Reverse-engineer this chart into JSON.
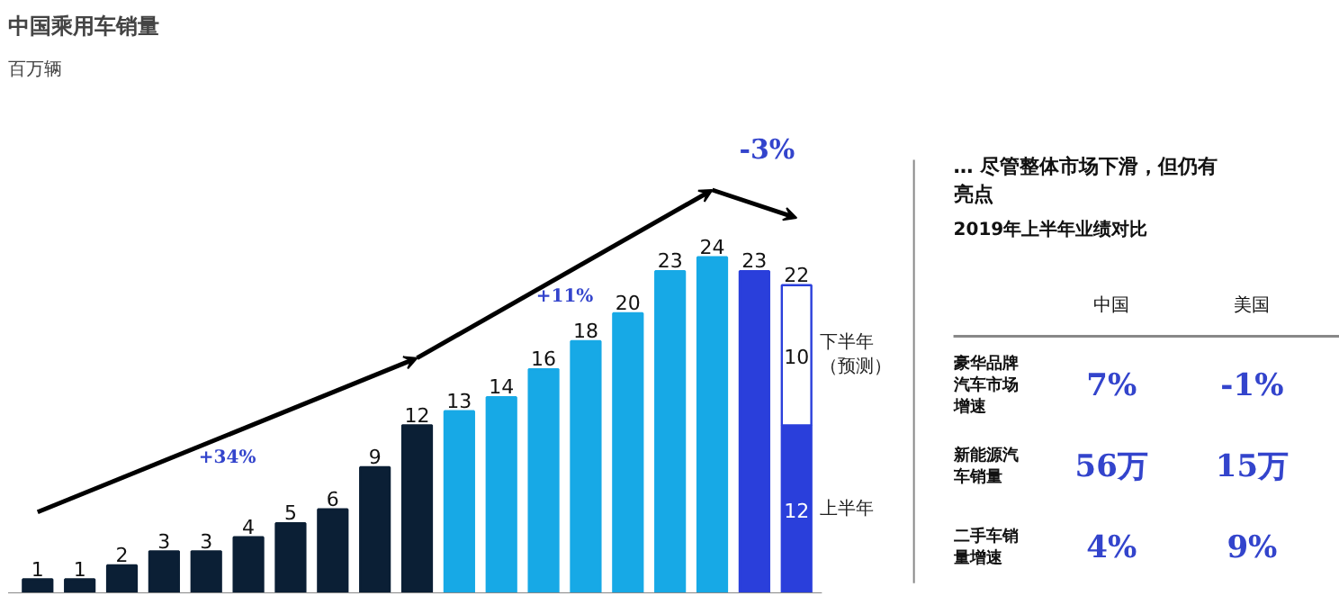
{
  "chart_data": [
    {
      "type": "bar",
      "title": "中国乘用车销量",
      "subtitle": "百万辆",
      "stacked": true,
      "data_labels": true,
      "categories": [
        null,
        null,
        null,
        null,
        null,
        null,
        null,
        null,
        null,
        null,
        null,
        null,
        null,
        null,
        null,
        null,
        null,
        null,
        null
      ],
      "series": [
        {
          "values": [
            1,
            1,
            2,
            3,
            3,
            4,
            5,
            6,
            9,
            12,
            13,
            14,
            16,
            18,
            20,
            23,
            24,
            23,
            null
          ],
          "colors": [
            "#0b1f35",
            "#0b1f35",
            "#0b1f35",
            "#0b1f35",
            "#0b1f35",
            "#0b1f35",
            "#0b1f35",
            "#0b1f35",
            "#0b1f35",
            "#0b1f35",
            "#17a9e6",
            "#17a9e6",
            "#17a9e6",
            "#17a9e6",
            "#17a9e6",
            "#17a9e6",
            "#17a9e6",
            "#2a3fdb",
            "#2a3fdb"
          ]
        },
        {
          "name": "上半年",
          "color": "#2a3fdb",
          "values": [
            null,
            null,
            null,
            null,
            null,
            null,
            null,
            null,
            null,
            null,
            null,
            null,
            null,
            null,
            null,
            null,
            null,
            null,
            12
          ]
        },
        {
          "name": "下半年（预测）",
          "color": "#ffffff",
          "values": [
            null,
            null,
            null,
            null,
            null,
            null,
            null,
            null,
            null,
            null,
            null,
            null,
            null,
            null,
            null,
            null,
            null,
            null,
            10
          ]
        }
      ],
      "totals": [
        null,
        null,
        null,
        null,
        null,
        null,
        null,
        null,
        null,
        null,
        null,
        null,
        null,
        null,
        null,
        null,
        null,
        null,
        "22"
      ],
      "annotations": [
        "+34%",
        "+11%",
        "-3%"
      ]
    },
    {
      "type": "other",
      "title": "… 尽管整体市场下滑，但仍有亮点",
      "subtitle": "2019年上半年业绩对比",
      "categories": [
        "中国",
        "美国"
      ],
      "y_categories": [
        "豪华品牌汽车市场增速",
        "新能源汽车销量",
        "二手车销量增速"
      ],
      "cell_labels": [
        [
          "7%",
          "-1%"
        ],
        [
          "56万",
          "15万"
        ],
        [
          "4%",
          "9%"
        ]
      ]
    }
  ]
}
